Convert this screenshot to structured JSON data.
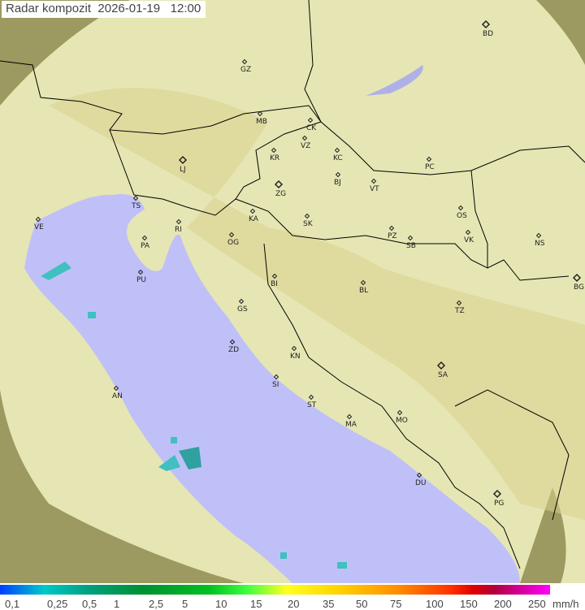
{
  "header": {
    "title": "Radar kompozit",
    "date": "2026-01-19",
    "time": "12:00"
  },
  "colors": {
    "sea": "#c0c0f8",
    "land": "#e8e8b8",
    "outside": "#9c9a60",
    "border": "#000000",
    "radar_cyan": "#40c0c0"
  },
  "cities": [
    {
      "code": "BD",
      "major": true
    },
    {
      "code": "GZ"
    },
    {
      "code": "MB"
    },
    {
      "code": "CK"
    },
    {
      "code": "VZ"
    },
    {
      "code": "KR"
    },
    {
      "code": "KC"
    },
    {
      "code": "LJ",
      "major": true
    },
    {
      "code": "PC"
    },
    {
      "code": "BJ"
    },
    {
      "code": "TS"
    },
    {
      "code": "ZG",
      "major": true
    },
    {
      "code": "VT"
    },
    {
      "code": "VE"
    },
    {
      "code": "RI"
    },
    {
      "code": "KA"
    },
    {
      "code": "SK"
    },
    {
      "code": "OS"
    },
    {
      "code": "PA"
    },
    {
      "code": "PZ"
    },
    {
      "code": "SB"
    },
    {
      "code": "VK"
    },
    {
      "code": "NS"
    },
    {
      "code": "OG"
    },
    {
      "code": "PU"
    },
    {
      "code": "BI"
    },
    {
      "code": "BL"
    },
    {
      "code": "BG",
      "major": true
    },
    {
      "code": "TZ"
    },
    {
      "code": "GS"
    },
    {
      "code": "ZD"
    },
    {
      "code": "KN"
    },
    {
      "code": "SA",
      "major": true
    },
    {
      "code": "AN"
    },
    {
      "code": "SI"
    },
    {
      "code": "ST"
    },
    {
      "code": "MA"
    },
    {
      "code": "MO"
    },
    {
      "code": "DU"
    },
    {
      "code": "PG",
      "major": true
    }
  ],
  "legend": {
    "labels": [
      "0,1",
      "0,25",
      "0,5",
      "1",
      "2,5",
      "5",
      "10",
      "15",
      "20",
      "35",
      "50",
      "75",
      "100",
      "150",
      "200",
      "250"
    ],
    "unit": "mm/h"
  }
}
